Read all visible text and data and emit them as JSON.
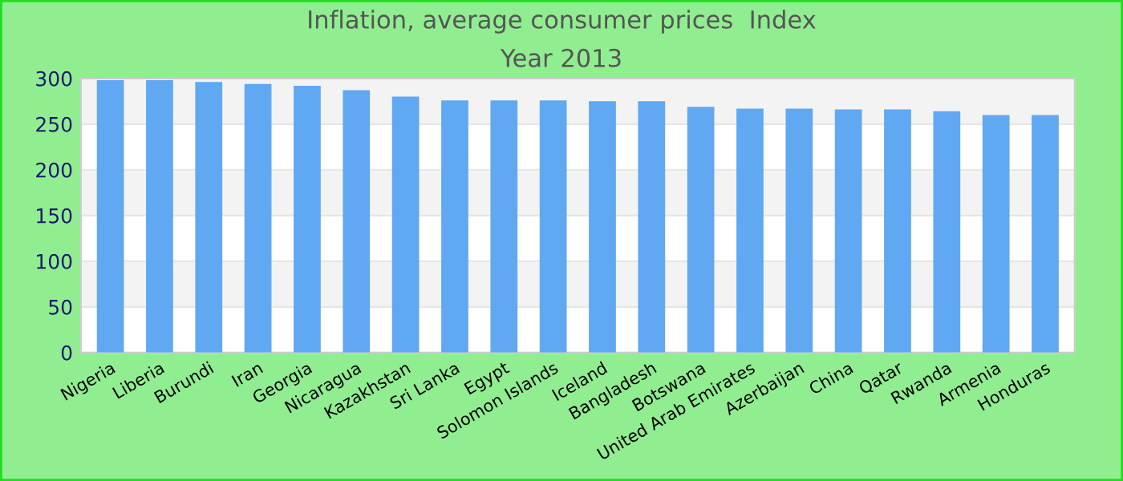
{
  "chart_data": {
    "type": "bar",
    "title": "Inflation, average consumer prices  Index",
    "subtitle": "Year 2013",
    "categories": [
      "Nigeria",
      "Liberia",
      "Burundi",
      "Iran",
      "Georgia",
      "Nicaragua",
      "Kazakhstan",
      "Sri Lanka",
      "Egypt",
      "Solomon Islands",
      "Iceland",
      "Bangladesh",
      "Botswana",
      "United Arab Emirates",
      "Azerbaijan",
      "China",
      "Qatar",
      "Rwanda",
      "Armenia",
      "Honduras"
    ],
    "values": [
      298,
      298,
      296,
      294,
      292,
      287,
      280,
      276,
      276,
      276,
      275,
      275,
      269,
      267,
      267,
      266,
      266,
      264,
      260,
      260
    ],
    "color": "#61a8f3",
    "ylim": [
      0,
      300
    ],
    "yticks": [
      0,
      50,
      100,
      150,
      200,
      250,
      300
    ],
    "grid": "y",
    "legend": false
  }
}
